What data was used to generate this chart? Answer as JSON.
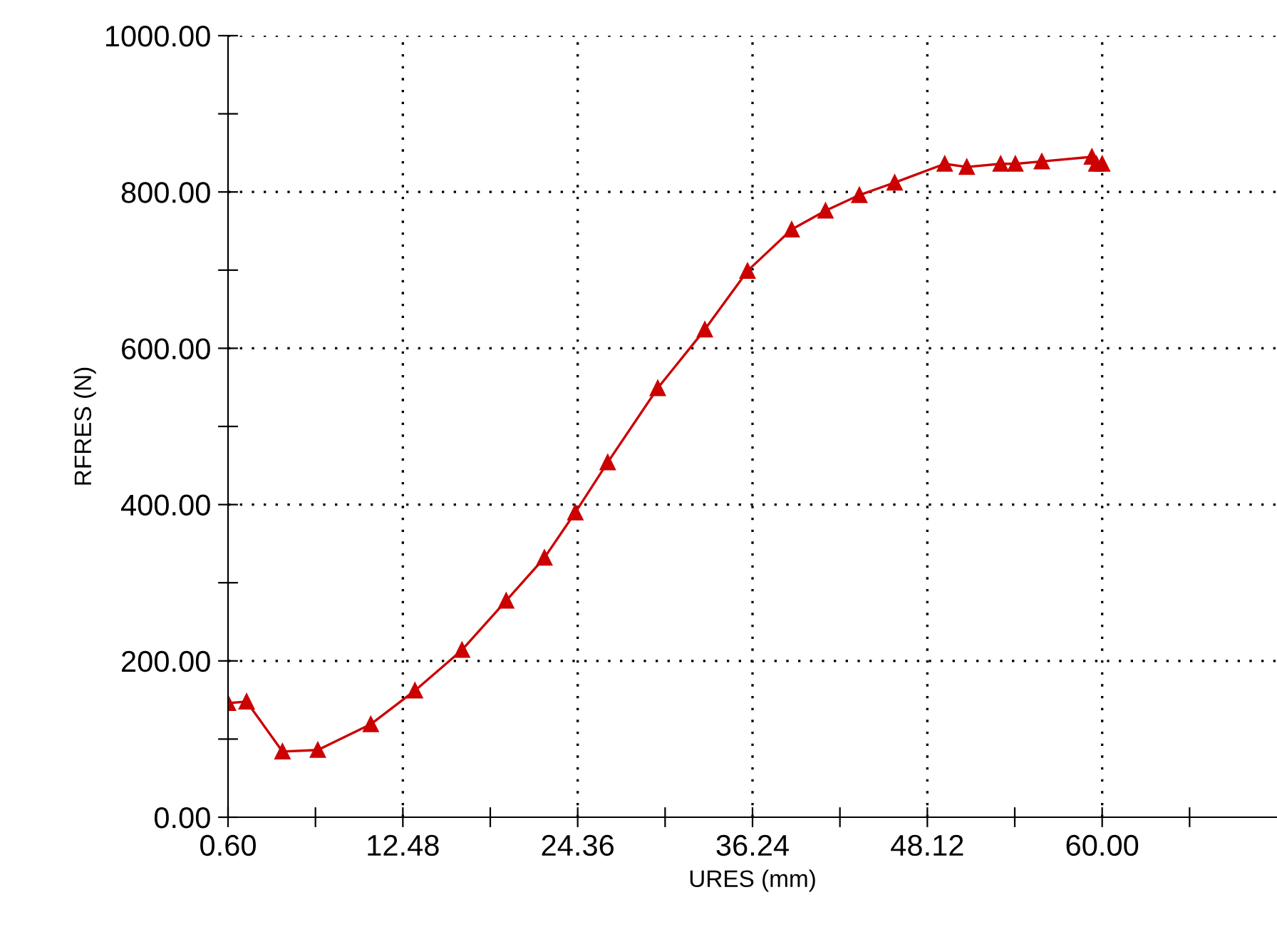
{
  "chart_data": {
    "type": "line",
    "xlabel": "URES (mm)",
    "ylabel": "RFRES (N)",
    "x": [
      0.6,
      1.86,
      4.3,
      6.7,
      10.3,
      13.3,
      16.5,
      19.5,
      22.1,
      24.2,
      26.4,
      29.8,
      33.0,
      35.9,
      38.9,
      41.2,
      43.5,
      45.9,
      49.3,
      50.8,
      53.1,
      54.1,
      55.9,
      59.3,
      59.6,
      60.0
    ],
    "series": [
      {
        "color": "#cc0000",
        "values": [
          146,
          148,
          84,
          86,
          119,
          162,
          214,
          277,
          332,
          390,
          454,
          549,
          624,
          699,
          752,
          776,
          796,
          812,
          836,
          832,
          836,
          836,
          839,
          845,
          836,
          836
        ]
      }
    ],
    "marker": "triangle",
    "line_style": "solid",
    "grid": true,
    "legend": false,
    "xlim": [
      0.6,
      71.88
    ],
    "xticks": [
      {
        "value": 0.6,
        "label": "0.60"
      },
      {
        "value": 6.54,
        "label": null
      },
      {
        "value": 12.48,
        "label": "12.48"
      },
      {
        "value": 18.42,
        "label": null
      },
      {
        "value": 24.36,
        "label": "24.36"
      },
      {
        "value": 30.3,
        "label": null
      },
      {
        "value": 36.24,
        "label": "36.24"
      },
      {
        "value": 42.18,
        "label": null
      },
      {
        "value": 48.12,
        "label": "48.12"
      },
      {
        "value": 54.06,
        "label": null
      },
      {
        "value": 60.0,
        "label": "60.00"
      },
      {
        "value": 65.94,
        "label": null
      }
    ],
    "ylim": [
      0,
      1000
    ],
    "yticks": [
      {
        "value": 0,
        "label": "0.00"
      },
      {
        "value": 100,
        "label": null
      },
      {
        "value": 200,
        "label": "200.00"
      },
      {
        "value": 300,
        "label": null
      },
      {
        "value": 400,
        "label": "400.00"
      },
      {
        "value": 500,
        "label": null
      },
      {
        "value": 600,
        "label": "600.00"
      },
      {
        "value": 700,
        "label": null
      },
      {
        "value": 800,
        "label": "800.00"
      },
      {
        "value": 900,
        "label": null
      },
      {
        "value": 1000,
        "label": "1000.00"
      }
    ]
  }
}
